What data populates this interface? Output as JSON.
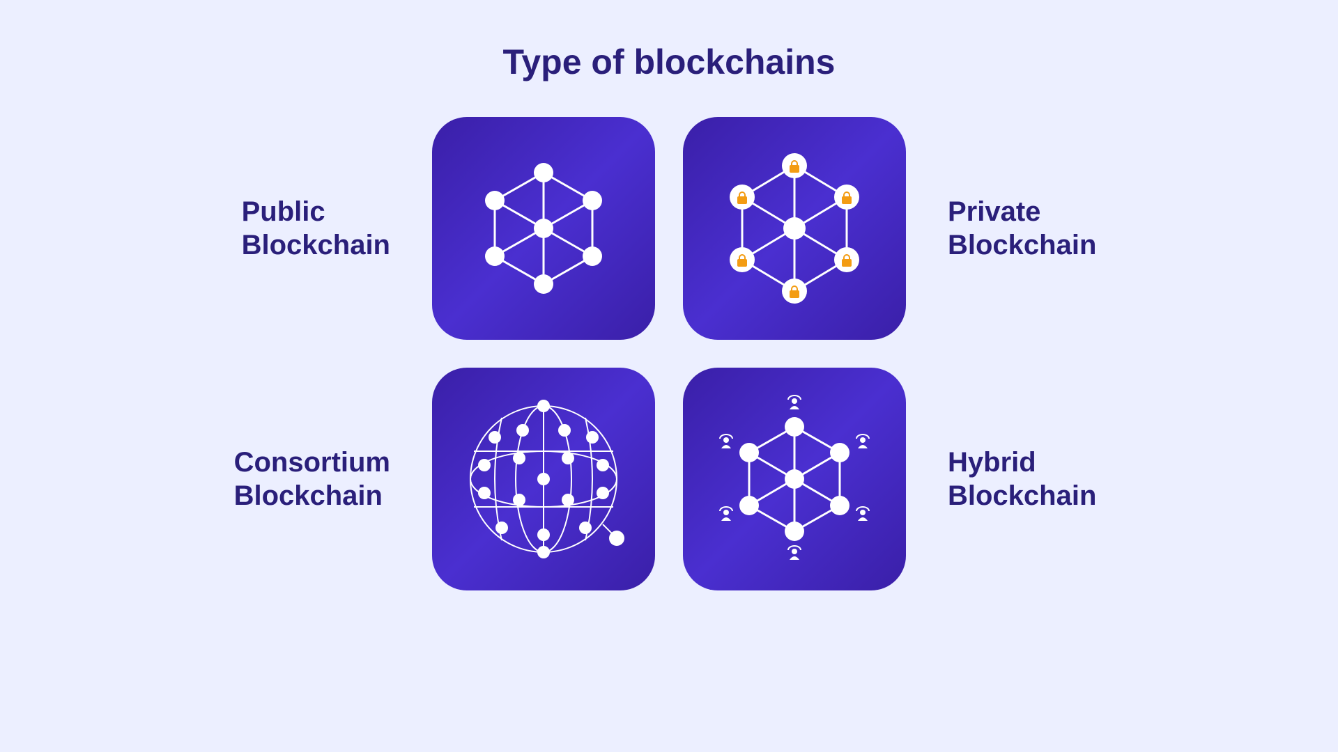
{
  "title": "Type of blockchains",
  "colors": {
    "background": "#ecefff",
    "text": "#2a1f7a",
    "card_gradient_start": "#3a1fa8",
    "card_gradient_mid": "#4a2fd0",
    "card_gradient_end": "#3a1fa8",
    "node_fill": "#ffffff",
    "edge_stroke": "#ffffff",
    "lock_color": "#f39c12",
    "lock_bg": "#ffffff"
  },
  "typography": {
    "title_fontsize": 50,
    "title_weight": 800,
    "label_fontsize": 40,
    "label_weight": 800
  },
  "layout": {
    "card_size": 320,
    "card_border_radius": 50,
    "grid_gap": 40
  },
  "items": [
    {
      "id": "public",
      "label": "Public\nBlockchain",
      "icon_type": "hex_plain",
      "node_radius": 14,
      "edge_width": 3
    },
    {
      "id": "private",
      "label": "Private\nBlockchain",
      "icon_type": "hex_locks",
      "node_radius": 18,
      "lock_radius": 18,
      "edge_width": 3
    },
    {
      "id": "consortium",
      "label": "Consortium\nBlockchain",
      "icon_type": "globe_mesh",
      "node_radius": 9,
      "edge_width": 2
    },
    {
      "id": "hybrid",
      "label": "Hybrid\nBlockchain",
      "icon_type": "hex_users",
      "node_radius": 14,
      "edge_width": 3
    }
  ]
}
